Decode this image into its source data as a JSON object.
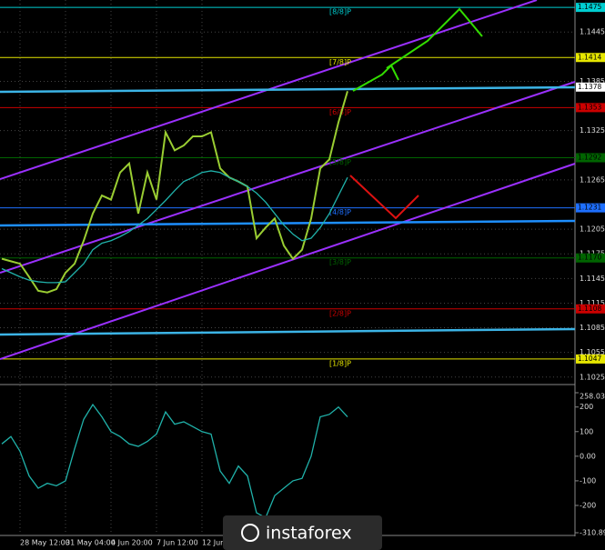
{
  "chart_data": [
    {
      "type": "line",
      "ylim": [
        1.1017,
        1.1484
      ],
      "yticks": [
        1.1445,
        1.1385,
        1.1325,
        1.1265,
        1.1205,
        1.1175,
        1.1145,
        1.1115,
        1.1085,
        1.1055,
        1.1025
      ],
      "xticks": [
        {
          "value": 2,
          "label": "28 May 12:00"
        },
        {
          "value": 7,
          "label": "31 May 04:00"
        },
        {
          "value": 12,
          "label": "4 Jun 20:00"
        },
        {
          "value": 17,
          "label": "7 Jun 12:00"
        },
        {
          "value": 22,
          "label": "12 Jun"
        }
      ],
      "grid": true,
      "last_price": 1.1378,
      "levels": [
        {
          "name": "[8/8]P",
          "value": 1.1475,
          "color": "#00ced1"
        },
        {
          "name": "[7/8]P",
          "value": 1.1414,
          "color": "#e6e600"
        },
        {
          "name": "[6/8]P",
          "value": 1.1353,
          "color": "#cc0000"
        },
        {
          "name": "[5/8]P",
          "value": 1.1292,
          "color": "#006400"
        },
        {
          "name": "[4/8]P",
          "value": 1.1231,
          "color": "#1e6fff"
        },
        {
          "name": "[3/8]P",
          "value": 1.117,
          "value_label": "1.1170",
          "color": "#006400"
        },
        {
          "name": "[2/8]P",
          "value": 1.1108,
          "color": "#cc0000"
        },
        {
          "name": "[1/8]P",
          "value": 1.1047,
          "color": "#e6e600"
        }
      ],
      "series": [
        {
          "color": "#9acd32",
          "values": [
            1.1169,
            1.1166,
            1.1163,
            1.1147,
            1.113,
            1.1128,
            1.1132,
            1.1152,
            1.1163,
            1.1191,
            1.1224,
            1.1246,
            1.1241,
            1.1274,
            1.1285,
            1.1224,
            1.1274,
            1.1241,
            1.1323,
            1.1301,
            1.1307,
            1.1318,
            1.1318,
            1.1323,
            1.1279,
            1.1268,
            1.1263,
            1.1257,
            1.1194,
            1.1207,
            1.1218,
            1.1185,
            1.1169,
            1.118,
            1.1218,
            1.1279,
            1.129,
            1.1335,
            1.1373
          ]
        },
        {
          "color": "#20b2aa",
          "values": [
            1.1157,
            1.1152,
            1.1147,
            1.1143,
            1.1141,
            1.114,
            1.114,
            1.1141,
            1.1152,
            1.1163,
            1.118,
            1.1188,
            1.1191,
            1.1196,
            1.1202,
            1.121,
            1.1218,
            1.1229,
            1.124,
            1.1252,
            1.1263,
            1.1268,
            1.1274,
            1.1276,
            1.1274,
            1.1268,
            1.1263,
            1.1257,
            1.1249,
            1.1238,
            1.1224,
            1.121,
            1.1199,
            1.1191,
            1.1194,
            1.1207,
            1.1224,
            1.1246,
            1.1268
          ]
        }
      ]
    },
    {
      "type": "line",
      "ylim": [
        -310.896,
        258.0386
      ],
      "yticks": [
        258.0386,
        200,
        100,
        {
          "value": 0,
          "label": "0.00"
        },
        -100,
        -200,
        -310.896
      ],
      "series": [
        {
          "color": "#20b2aa",
          "values": [
            50,
            80,
            20,
            -80,
            -130,
            -110,
            -120,
            -100,
            30,
            150,
            210,
            160,
            100,
            80,
            50,
            40,
            60,
            90,
            180,
            130,
            140,
            120,
            100,
            90,
            -60,
            -110,
            -40,
            -80,
            -230,
            -250,
            -160,
            -130,
            -100,
            -90,
            0,
            160,
            170,
            200,
            160
          ]
        }
      ]
    }
  ],
  "watermark": "instaforex"
}
